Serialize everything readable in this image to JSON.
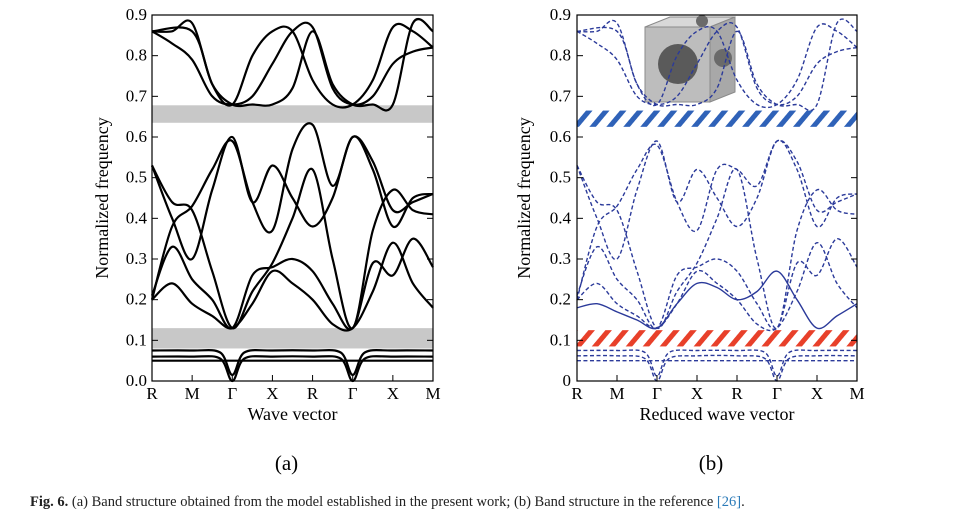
{
  "caption": {
    "label": "Fig. 6.",
    "text": " (a) Band structure obtained from the model established in the present work; (b) Band structure in the reference ",
    "ref": "[26]",
    "end": "."
  },
  "chart_data": [
    {
      "type": "line",
      "panel_label": "(a)",
      "xlabel": "Wave vector",
      "ylabel": "Normalized frequency",
      "x_ticks": [
        "R",
        "M",
        "Γ",
        "X",
        "R",
        "Γ",
        "X",
        "M"
      ],
      "ylim": [
        0,
        0.9
      ],
      "y_ticks": [
        "0.0",
        "0.1",
        "0.2",
        "0.3",
        "0.4",
        "0.5",
        "0.6",
        "0.7",
        "0.8",
        "0.9"
      ],
      "band_gaps": [
        [
          0.08,
          0.13
        ],
        [
          0.635,
          0.678
        ]
      ],
      "band_gap_color": "#c8c8c8",
      "line_color": "#000000",
      "line_style": "solid",
      "series": [
        {
          "x": [
            0,
            1,
            2,
            3,
            4,
            5,
            6,
            7
          ],
          "y": [
            0.05,
            0.05,
            0.05,
            0.05,
            0.05,
            0.05,
            0.05,
            0.05
          ]
        },
        {
          "x": [
            0,
            1,
            1.7,
            2,
            2.3,
            3,
            4,
            4.7,
            5,
            5.3,
            6,
            7
          ],
          "y": [
            0.06,
            0.06,
            0.055,
            0.0,
            0.055,
            0.06,
            0.06,
            0.055,
            0.0,
            0.055,
            0.06,
            0.06
          ]
        },
        {
          "x": [
            0,
            1,
            1.7,
            2,
            2.3,
            3,
            4,
            4.7,
            5,
            5.3,
            6,
            7
          ],
          "y": [
            0.075,
            0.075,
            0.07,
            0.015,
            0.07,
            0.075,
            0.075,
            0.07,
            0.015,
            0.07,
            0.075,
            0.075
          ]
        },
        {
          "x": [
            0,
            0.5,
            1,
            1.5,
            2,
            2.5,
            3,
            3.5,
            4,
            4.5,
            5,
            5.5,
            6,
            6.5,
            7
          ],
          "y": [
            0.2,
            0.24,
            0.19,
            0.16,
            0.13,
            0.19,
            0.27,
            0.24,
            0.2,
            0.14,
            0.13,
            0.22,
            0.34,
            0.24,
            0.18
          ]
        },
        {
          "x": [
            0,
            0.5,
            1,
            1.5,
            2,
            2.5,
            3,
            3.5,
            4,
            4.5,
            5,
            5.5,
            6,
            6.5,
            7
          ],
          "y": [
            0.21,
            0.33,
            0.25,
            0.2,
            0.13,
            0.26,
            0.28,
            0.3,
            0.27,
            0.19,
            0.13,
            0.29,
            0.26,
            0.35,
            0.28
          ]
        },
        {
          "x": [
            0,
            0.5,
            1,
            1.5,
            2,
            2.5,
            3,
            3.5,
            4,
            4.5,
            5,
            5.5,
            6,
            6.5,
            7
          ],
          "y": [
            0.53,
            0.44,
            0.42,
            0.27,
            0.13,
            0.22,
            0.29,
            0.4,
            0.52,
            0.3,
            0.13,
            0.37,
            0.47,
            0.42,
            0.41
          ]
        },
        {
          "x": [
            0,
            0.5,
            1,
            1.5,
            2,
            2.5,
            3,
            3.5,
            4,
            4.5,
            5,
            5.5,
            6,
            6.5,
            7
          ],
          "y": [
            0.53,
            0.4,
            0.3,
            0.47,
            0.6,
            0.44,
            0.53,
            0.45,
            0.38,
            0.45,
            0.6,
            0.52,
            0.38,
            0.45,
            0.46
          ]
        },
        {
          "x": [
            0,
            0.5,
            1,
            1.5,
            2,
            2.5,
            3,
            3.5,
            4,
            4.5,
            5,
            5.5,
            6,
            6.5,
            7
          ],
          "y": [
            0.2,
            0.38,
            0.43,
            0.52,
            0.59,
            0.44,
            0.37,
            0.57,
            0.63,
            0.48,
            0.6,
            0.54,
            0.42,
            0.44,
            0.46
          ]
        },
        {
          "x": [
            0,
            0.5,
            1,
            1.5,
            2,
            2.5,
            3,
            3.5,
            4,
            4.5,
            5,
            5.5,
            6,
            6.5,
            7
          ],
          "y": [
            0.86,
            0.86,
            0.88,
            0.73,
            0.68,
            0.8,
            0.86,
            0.86,
            0.74,
            0.68,
            0.68,
            0.74,
            0.87,
            0.86,
            0.82
          ]
        },
        {
          "x": [
            0,
            0.5,
            1,
            1.5,
            2,
            2.5,
            3,
            3.5,
            4,
            4.5,
            5,
            5.5,
            6,
            6.5,
            7
          ],
          "y": [
            0.86,
            0.83,
            0.79,
            0.7,
            0.68,
            0.7,
            0.78,
            0.86,
            0.87,
            0.72,
            0.68,
            0.7,
            0.78,
            0.81,
            0.82
          ]
        },
        {
          "x": [
            0,
            1,
            1.5,
            2,
            2.5,
            3,
            3.5,
            4,
            4.5,
            5,
            5.5,
            6,
            6.5,
            7
          ],
          "y": [
            0.86,
            0.86,
            0.73,
            0.68,
            0.68,
            0.68,
            0.72,
            0.86,
            0.73,
            0.68,
            0.68,
            0.68,
            0.88,
            0.86
          ]
        }
      ]
    },
    {
      "type": "line",
      "panel_label": "(b)",
      "xlabel": "Reduced wave vector",
      "ylabel": "Normalized frequency",
      "x_ticks": [
        "R",
        "M",
        "Γ",
        "X",
        "R",
        "Γ",
        "X",
        "M"
      ],
      "ylim": [
        0,
        0.9
      ],
      "y_ticks": [
        "0",
        "0.1",
        "0.2",
        "0.3",
        "0.4",
        "0.5",
        "0.6",
        "0.7",
        "0.8",
        "0.9"
      ],
      "band_gaps": [
        [
          0.085,
          0.125
        ],
        [
          0.625,
          0.665
        ]
      ],
      "band_gap_colors": [
        "#e8402a",
        "#2f62b8"
      ],
      "band_gap_style": "hatched",
      "line_color": "#2b3a9a",
      "line_style": "dashed",
      "highlighted_band_style": "solid",
      "inset": "unit-cell-model",
      "series": [
        {
          "x": [
            0,
            1,
            2,
            3,
            4,
            5,
            6,
            7
          ],
          "y": [
            0.05,
            0.05,
            0.05,
            0.05,
            0.05,
            0.05,
            0.05,
            0.05
          ]
        },
        {
          "x": [
            0,
            1,
            1.7,
            2,
            2.3,
            3,
            4,
            4.7,
            5,
            5.3,
            6,
            7
          ],
          "y": [
            0.062,
            0.062,
            0.055,
            0.0,
            0.055,
            0.062,
            0.062,
            0.055,
            0.0,
            0.055,
            0.062,
            0.062
          ]
        },
        {
          "x": [
            0,
            1,
            1.7,
            2,
            2.3,
            3,
            4,
            4.7,
            5,
            5.3,
            6,
            7
          ],
          "y": [
            0.075,
            0.075,
            0.07,
            0.012,
            0.07,
            0.075,
            0.075,
            0.07,
            0.012,
            0.07,
            0.075,
            0.075
          ]
        },
        {
          "x": [
            0,
            0.5,
            1,
            1.5,
            2,
            2.5,
            3,
            3.5,
            4,
            4.5,
            5,
            5.5,
            6,
            6.5,
            7
          ],
          "y": [
            0.2,
            0.24,
            0.19,
            0.16,
            0.13,
            0.19,
            0.27,
            0.24,
            0.2,
            0.14,
            0.13,
            0.22,
            0.34,
            0.24,
            0.18
          ]
        },
        {
          "x": [
            0,
            0.5,
            1,
            1.5,
            2,
            2.5,
            3,
            3.5,
            4,
            4.5,
            5,
            5.5,
            6,
            6.5,
            7
          ],
          "y": [
            0.21,
            0.33,
            0.25,
            0.2,
            0.13,
            0.26,
            0.28,
            0.3,
            0.27,
            0.19,
            0.13,
            0.29,
            0.26,
            0.35,
            0.28
          ]
        },
        {
          "x": [
            0,
            0.5,
            1,
            1.5,
            2,
            2.5,
            3,
            3.5,
            4,
            4.5,
            5,
            5.5,
            6,
            6.5,
            7
          ],
          "y": [
            0.53,
            0.44,
            0.42,
            0.27,
            0.13,
            0.22,
            0.29,
            0.4,
            0.52,
            0.3,
            0.13,
            0.37,
            0.47,
            0.42,
            0.41
          ]
        },
        {
          "x": [
            0,
            0.5,
            1,
            1.5,
            2,
            2.5,
            3,
            3.5,
            4,
            4.5,
            5,
            5.5,
            6,
            6.5,
            7
          ],
          "y": [
            0.53,
            0.4,
            0.3,
            0.47,
            0.59,
            0.44,
            0.52,
            0.45,
            0.38,
            0.45,
            0.59,
            0.52,
            0.38,
            0.45,
            0.46
          ]
        },
        {
          "x": [
            0,
            0.5,
            1,
            1.5,
            2,
            2.5,
            3,
            3.5,
            4,
            4.5,
            5,
            5.5,
            6,
            6.5,
            7
          ],
          "y": [
            0.2,
            0.38,
            0.43,
            0.52,
            0.58,
            0.44,
            0.37,
            0.52,
            0.52,
            0.48,
            0.59,
            0.54,
            0.42,
            0.44,
            0.46
          ]
        },
        {
          "x": [
            0,
            0.5,
            1,
            1.5,
            2,
            2.5,
            3,
            3.5,
            4,
            4.5,
            5,
            5.5,
            6,
            6.5,
            7
          ],
          "y": [
            0.86,
            0.86,
            0.88,
            0.73,
            0.68,
            0.8,
            0.86,
            0.86,
            0.74,
            0.68,
            0.68,
            0.74,
            0.87,
            0.86,
            0.82
          ]
        },
        {
          "x": [
            0,
            0.5,
            1,
            1.5,
            2,
            2.5,
            3,
            3.5,
            4,
            4.5,
            5,
            5.5,
            6,
            6.5,
            7
          ],
          "y": [
            0.86,
            0.83,
            0.79,
            0.7,
            0.68,
            0.7,
            0.78,
            0.86,
            0.87,
            0.72,
            0.68,
            0.7,
            0.78,
            0.81,
            0.82
          ]
        },
        {
          "x": [
            0,
            1,
            1.5,
            2,
            2.5,
            3,
            3.5,
            4,
            4.5,
            5,
            5.5,
            6,
            6.5,
            7
          ],
          "y": [
            0.86,
            0.86,
            0.73,
            0.68,
            0.68,
            0.68,
            0.72,
            0.86,
            0.73,
            0.68,
            0.68,
            0.68,
            0.88,
            0.86
          ]
        },
        {
          "x": [
            0,
            0.5,
            1,
            1.5,
            2,
            2.5,
            3,
            3.5,
            4,
            4.5,
            5,
            5.5,
            6,
            6.5,
            7
          ],
          "y": [
            0.18,
            0.19,
            0.17,
            0.15,
            0.13,
            0.19,
            0.24,
            0.23,
            0.2,
            0.22,
            0.27,
            0.2,
            0.13,
            0.16,
            0.19
          ],
          "style": "solid"
        }
      ]
    }
  ]
}
